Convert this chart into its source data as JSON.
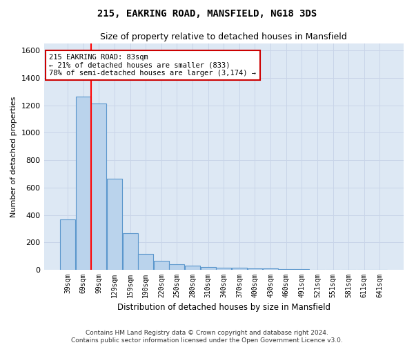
{
  "title1": "215, EAKRING ROAD, MANSFIELD, NG18 3DS",
  "title2": "Size of property relative to detached houses in Mansfield",
  "xlabel": "Distribution of detached houses by size in Mansfield",
  "ylabel": "Number of detached properties",
  "categories": [
    "39sqm",
    "69sqm",
    "99sqm",
    "129sqm",
    "159sqm",
    "190sqm",
    "220sqm",
    "250sqm",
    "280sqm",
    "310sqm",
    "340sqm",
    "370sqm",
    "400sqm",
    "430sqm",
    "460sqm",
    "491sqm",
    "521sqm",
    "551sqm",
    "581sqm",
    "611sqm",
    "641sqm"
  ],
  "values": [
    370,
    1265,
    1215,
    665,
    265,
    115,
    65,
    40,
    30,
    20,
    15,
    15,
    10,
    10,
    5,
    5,
    0,
    0,
    0,
    0,
    0
  ],
  "bar_color": "#bad3ec",
  "bar_edge_color": "#5a96cc",
  "red_line_index": 1.5,
  "annotation_line1": "215 EAKRING ROAD: 83sqm",
  "annotation_line2": "← 21% of detached houses are smaller (833)",
  "annotation_line3": "78% of semi-detached houses are larger (3,174) →",
  "annotation_box_color": "#cc0000",
  "ylim": [
    0,
    1650
  ],
  "yticks": [
    0,
    200,
    400,
    600,
    800,
    1000,
    1200,
    1400,
    1600
  ],
  "grid_color": "#c8d4e8",
  "bg_color": "#dde8f4",
  "footnote1": "Contains HM Land Registry data © Crown copyright and database right 2024.",
  "footnote2": "Contains public sector information licensed under the Open Government Licence v3.0."
}
